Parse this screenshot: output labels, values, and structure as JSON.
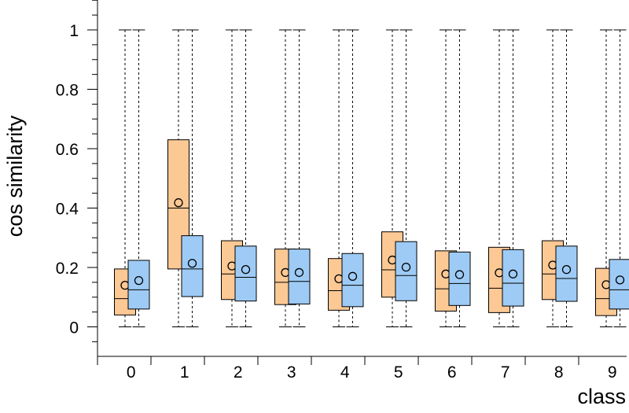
{
  "chart_data": {
    "type": "boxplot",
    "xlabel": "class",
    "ylabel": "cos similarity",
    "ylim": [
      -0.1,
      1.1
    ],
    "yticks": [
      0,
      0.2,
      0.4,
      0.6,
      0.8,
      1
    ],
    "ytick_labels": [
      "0",
      "0.2",
      "0.4",
      "0.6",
      "0.8",
      "1"
    ],
    "categories": [
      "0",
      "1",
      "2",
      "3",
      "4",
      "5",
      "6",
      "7",
      "8",
      "9"
    ],
    "grid": false,
    "legend": "none",
    "series": [
      {
        "color": "#fcc894",
        "boxes": [
          {
            "min": 0,
            "q1": 0.04,
            "median": 0.095,
            "q3": 0.195,
            "max": 1,
            "mean": 0.14
          },
          {
            "min": 0,
            "q1": 0.195,
            "median": 0.4,
            "q3": 0.63,
            "max": 1,
            "mean": 0.418
          },
          {
            "min": 0,
            "q1": 0.092,
            "median": 0.178,
            "q3": 0.29,
            "max": 1,
            "mean": 0.205
          },
          {
            "min": 0,
            "q1": 0.075,
            "median": 0.15,
            "q3": 0.262,
            "max": 1,
            "mean": 0.183
          },
          {
            "min": 0,
            "q1": 0.056,
            "median": 0.122,
            "q3": 0.23,
            "max": 1,
            "mean": 0.162
          },
          {
            "min": 0,
            "q1": 0.1,
            "median": 0.192,
            "q3": 0.32,
            "max": 1,
            "mean": 0.225
          },
          {
            "min": 0,
            "q1": 0.053,
            "median": 0.128,
            "q3": 0.256,
            "max": 1,
            "mean": 0.178
          },
          {
            "min": 0,
            "q1": 0.048,
            "median": 0.13,
            "q3": 0.268,
            "max": 1,
            "mean": 0.182
          },
          {
            "min": 0,
            "q1": 0.092,
            "median": 0.178,
            "q3": 0.29,
            "max": 1,
            "mean": 0.208
          },
          {
            "min": 0,
            "q1": 0.038,
            "median": 0.095,
            "q3": 0.197,
            "max": 1,
            "mean": 0.142
          }
        ]
      },
      {
        "color": "#9ecbf5",
        "boxes": [
          {
            "min": 0,
            "q1": 0.06,
            "median": 0.125,
            "q3": 0.224,
            "max": 1,
            "mean": 0.156
          },
          {
            "min": 0,
            "q1": 0.102,
            "median": 0.195,
            "q3": 0.307,
            "max": 1,
            "mean": 0.214
          },
          {
            "min": 0,
            "q1": 0.087,
            "median": 0.167,
            "q3": 0.272,
            "max": 1,
            "mean": 0.193
          },
          {
            "min": 0,
            "q1": 0.077,
            "median": 0.153,
            "q3": 0.262,
            "max": 1,
            "mean": 0.183
          },
          {
            "min": 0,
            "q1": 0.068,
            "median": 0.14,
            "q3": 0.247,
            "max": 1,
            "mean": 0.17
          },
          {
            "min": 0,
            "q1": 0.088,
            "median": 0.173,
            "q3": 0.287,
            "max": 1,
            "mean": 0.201
          },
          {
            "min": 0,
            "q1": 0.072,
            "median": 0.146,
            "q3": 0.252,
            "max": 1,
            "mean": 0.176
          },
          {
            "min": 0,
            "q1": 0.07,
            "median": 0.147,
            "q3": 0.26,
            "max": 1,
            "mean": 0.178
          },
          {
            "min": 0,
            "q1": 0.086,
            "median": 0.163,
            "q3": 0.272,
            "max": 1,
            "mean": 0.193
          },
          {
            "min": 0,
            "q1": 0.06,
            "median": 0.125,
            "q3": 0.227,
            "max": 1,
            "mean": 0.158
          }
        ]
      }
    ]
  }
}
